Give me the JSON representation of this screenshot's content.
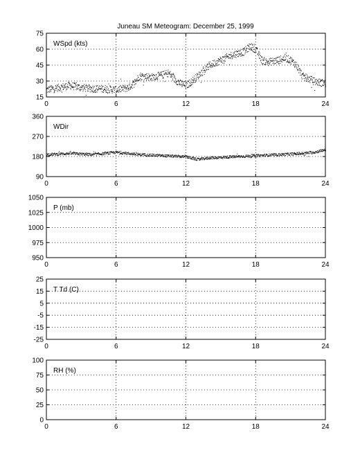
{
  "figure": {
    "title": "Juneau SM Meteogram:   December 25, 1999"
  },
  "chart_data": [
    {
      "type": "scatter",
      "panel_label": "WSpd (kts)",
      "xlim": [
        0,
        24
      ],
      "ylim": [
        15,
        75
      ],
      "x_ticks": [
        0,
        6,
        12,
        18,
        24
      ],
      "y_ticks": [
        15,
        30,
        45,
        60,
        75
      ],
      "grid": true,
      "trend": {
        "x": [
          0,
          1,
          2,
          3,
          4,
          5,
          6,
          7,
          7.5,
          8,
          9,
          10,
          10.5,
          11,
          11.5,
          12,
          12.5,
          13,
          14,
          15,
          16,
          17,
          17.5,
          18,
          18.5,
          19,
          20,
          20.5,
          21,
          21.5,
          22,
          23,
          24
        ],
        "y": [
          22,
          24,
          26,
          24,
          23,
          23,
          22,
          24,
          28,
          35,
          34,
          36,
          38,
          32,
          28,
          26,
          30,
          35,
          45,
          50,
          55,
          58,
          63,
          60,
          50,
          48,
          50,
          52,
          50,
          45,
          35,
          30,
          28
        ]
      },
      "spread": 3.5
    },
    {
      "type": "scatter",
      "panel_label": "WDir",
      "xlim": [
        0,
        24
      ],
      "ylim": [
        90,
        360
      ],
      "x_ticks": [
        0,
        6,
        12,
        18,
        24
      ],
      "y_ticks": [
        90,
        180,
        270,
        360
      ],
      "y_tick_labels": [
        "90",
        "180",
        "270",
        "360"
      ],
      "grid": true,
      "trend": {
        "x": [
          0,
          2,
          4,
          6,
          8,
          10,
          12,
          13,
          14,
          16,
          18,
          20,
          22,
          23,
          24
        ],
        "y": [
          190,
          195,
          190,
          200,
          190,
          185,
          180,
          168,
          175,
          180,
          185,
          190,
          195,
          200,
          212
        ]
      },
      "spread": 6
    },
    {
      "type": "scatter",
      "panel_label": "P (mb)",
      "xlim": [
        0,
        24
      ],
      "ylim": [
        950,
        1050
      ],
      "x_ticks": [
        0,
        6,
        12,
        18,
        24
      ],
      "y_ticks": [
        950,
        975,
        1000,
        1025,
        1050
      ],
      "grid": true
    },
    {
      "type": "scatter",
      "panel_label": "T Td (C)",
      "xlim": [
        0,
        24
      ],
      "ylim": [
        -25,
        25
      ],
      "x_ticks": [
        0,
        6,
        12,
        18,
        24
      ],
      "y_ticks": [
        -25,
        -15,
        -5,
        5,
        15,
        25
      ],
      "grid": true
    },
    {
      "type": "scatter",
      "panel_label": "RH (%)",
      "xlim": [
        0,
        24
      ],
      "ylim": [
        0,
        100
      ],
      "x_ticks": [
        0,
        6,
        12,
        18,
        24
      ],
      "y_ticks": [
        0,
        25,
        50,
        75,
        100
      ],
      "grid": true
    }
  ]
}
